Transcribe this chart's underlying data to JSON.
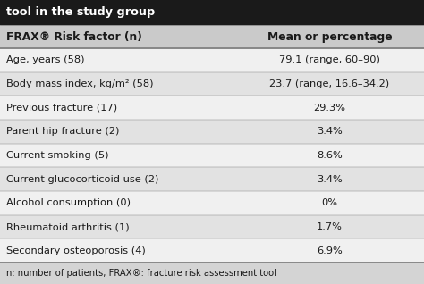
{
  "title": "tool in the study group",
  "title_bg": "#1a1a1a",
  "title_color": "#ffffff",
  "header_col1": "FRAX® Risk factor (n)",
  "header_col2": "Mean or percentage",
  "rows": [
    [
      "Age, years (58)",
      "79.1 (range, 60–90)"
    ],
    [
      "Body mass index, kg/m² (58)",
      "23.7 (range, 16.6–34.2)"
    ],
    [
      "Previous fracture (17)",
      "29.3%"
    ],
    [
      "Parent hip fracture (2)",
      "3.4%"
    ],
    [
      "Current smoking (5)",
      "8.6%"
    ],
    [
      "Current glucocorticoid use (2)",
      "3.4%"
    ],
    [
      "Alcohol consumption (0)",
      "0%"
    ],
    [
      "Rheumatoid arthritis (1)",
      "1.7%"
    ],
    [
      "Secondary osteoporosis (4)",
      "6.9%"
    ]
  ],
  "footnote": "n: number of patients; FRAX®: fracture risk assessment tool",
  "bg_color": "#d4d4d4",
  "row_bg_light": "#f0f0f0",
  "row_bg_dark": "#e2e2e2",
  "header_bg": "#cacaca",
  "border_color": "#888888",
  "text_color": "#1a1a1a",
  "col_split": 0.555,
  "font_size": 8.2,
  "header_font_size": 8.8,
  "title_font_size": 9.2,
  "footnote_font_size": 7.2
}
